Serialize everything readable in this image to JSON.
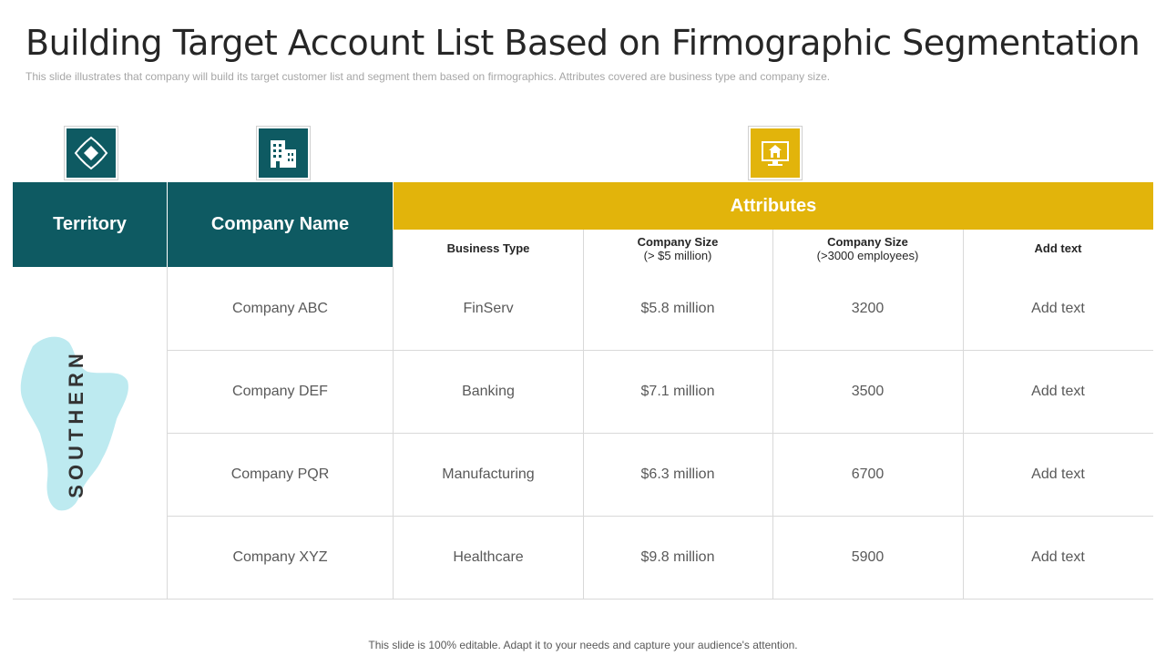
{
  "title": "Building Target Account List Based on Firmographic Segmentation",
  "subtitle": "This slide illustrates that company will build its target customer list  and segment them based on firmographics.  Attributes covered  are business type and company size.",
  "icons": {
    "territory": "diamond-navigation-icon",
    "company": "office-building-icon",
    "attributes": "computer-monitor-house-icon"
  },
  "colors": {
    "teal": "#0e5a62",
    "gold": "#e2b40b",
    "map": "#bdeaf0"
  },
  "table": {
    "territory_header": "Territory",
    "company_header": "Company Name",
    "attributes_header": "Attributes",
    "subheaders": {
      "business_type": "Business Type",
      "size_revenue_title": "Company Size",
      "size_revenue_note": "(> $5 million)",
      "size_employees_title": "Company Size",
      "size_employees_note": "(>3000 employees)",
      "add_text": "Add text"
    },
    "territory": "SOUTHERN",
    "rows": [
      {
        "company": "Company ABC",
        "business_type": "FinServ",
        "revenue": "$5.8 million",
        "employees": "3200",
        "extra": "Add text"
      },
      {
        "company": "Company DEF",
        "business_type": "Banking",
        "revenue": "$7.1 million",
        "employees": "3500",
        "extra": "Add text"
      },
      {
        "company": "Company PQR",
        "business_type": "Manufacturing",
        "revenue": "$6.3 million",
        "employees": "6700",
        "extra": "Add text"
      },
      {
        "company": "Company XYZ",
        "business_type": "Healthcare",
        "revenue": "$9.8 million",
        "employees": "5900",
        "extra": "Add text"
      }
    ]
  },
  "footer": "This slide is 100% editable. Adapt it to your needs and capture your audience's attention."
}
